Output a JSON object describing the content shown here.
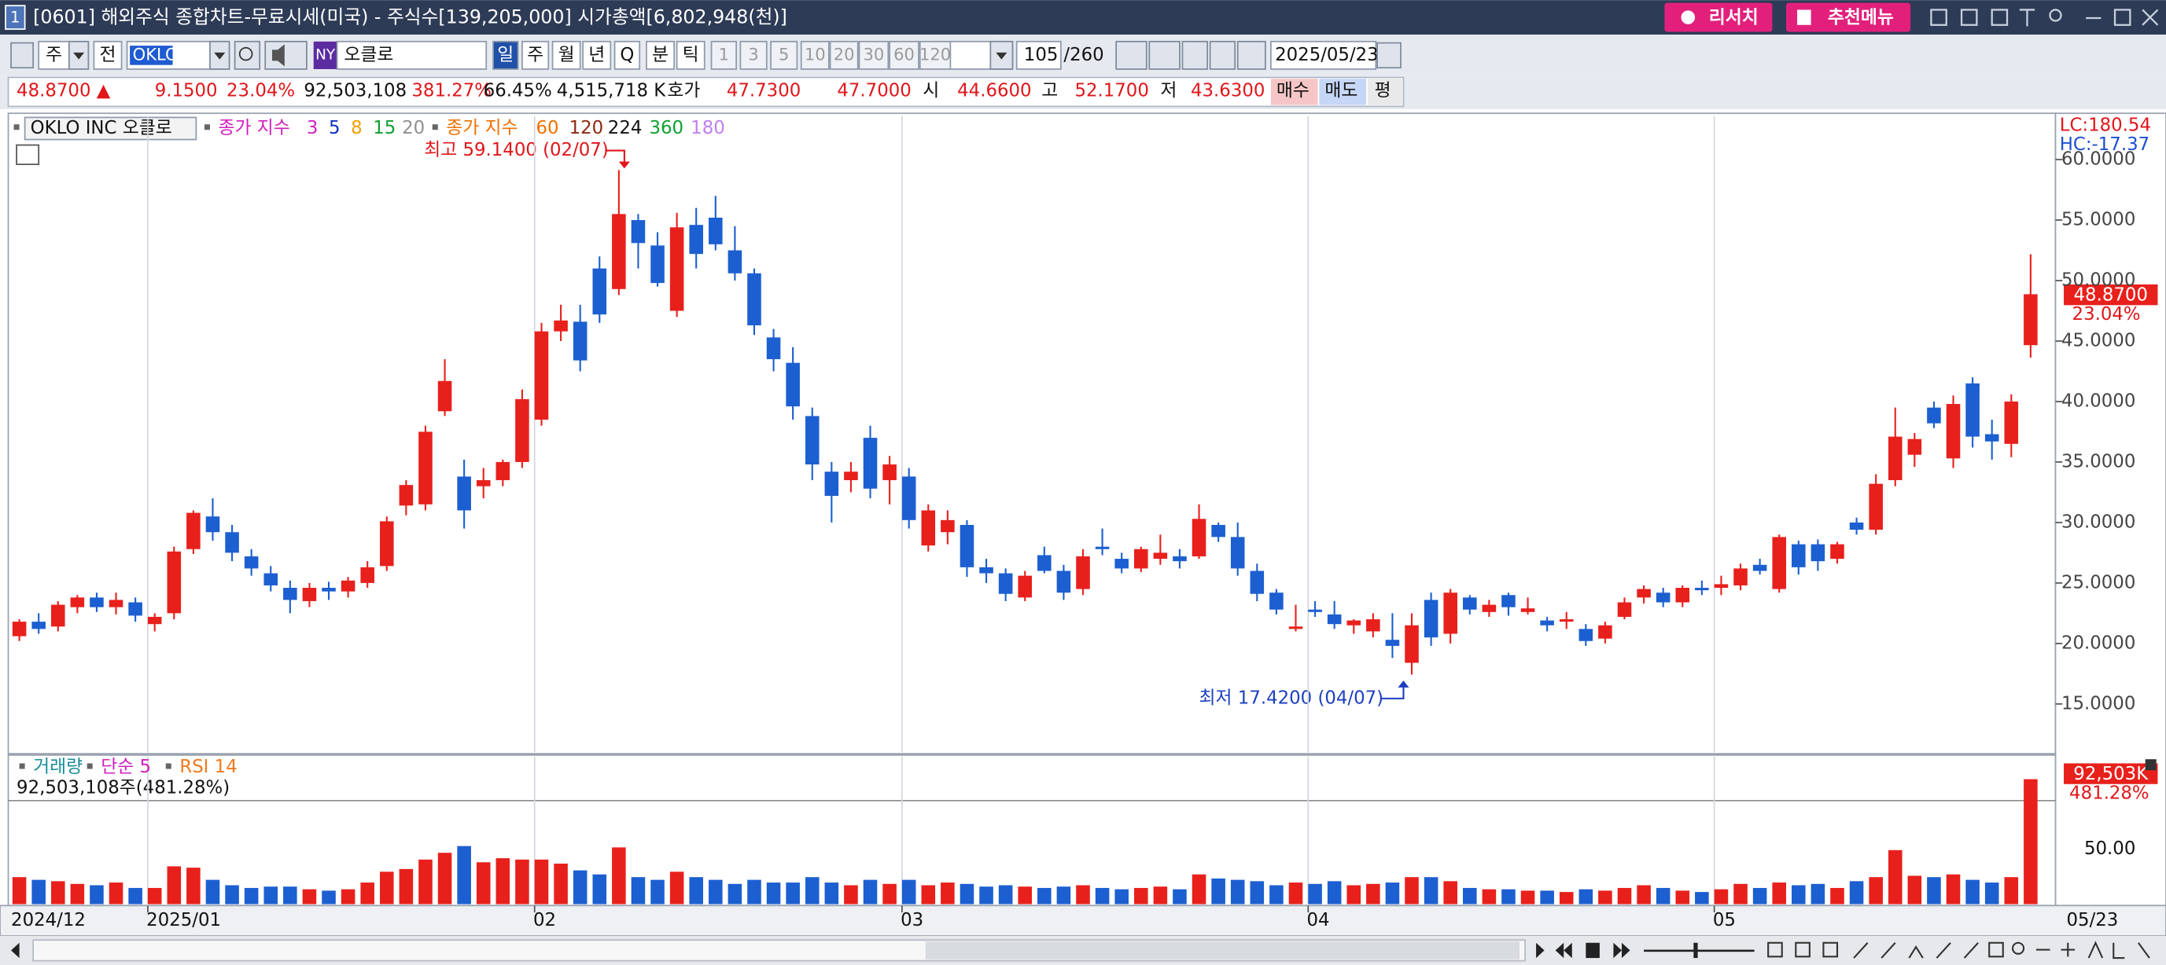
{
  "header": {
    "window_number": "1",
    "title": "[0601] 해외주식 종합차트-무료시세(미국) - 주식수[139,205,000] 시가총액[6,802,948(천)]",
    "buttons": [
      "리서치",
      "추천메뉴"
    ]
  },
  "toolbar": {
    "market": "주",
    "scope": "전",
    "symbol": "OKLO",
    "exchange": "NY",
    "name": "오클로",
    "periods": [
      "일",
      "주",
      "월",
      "년",
      "Q",
      "분",
      "틱",
      "1",
      "3",
      "5",
      "10",
      "20",
      "30",
      "60",
      "120"
    ],
    "count": "105",
    "max_count": "/260",
    "date": "2025/05/23"
  },
  "quote": [
    {
      "text": "48.8700 ▲",
      "color": "#e0161b"
    },
    {
      "text": "9.1500",
      "color": "#e0161b"
    },
    {
      "text": "23.04%",
      "color": "#e0161b"
    },
    {
      "text": "92,503,108",
      "color": "#111111"
    },
    {
      "text": "381.27%",
      "color": "#e0161b"
    },
    {
      "text": "66.45%",
      "color": "#111111"
    },
    {
      "text": "4,515,718 K",
      "color": "#111111"
    },
    {
      "text": "호가",
      "color": "#111111"
    },
    {
      "text": "47.7300",
      "color": "#e0161b"
    },
    {
      "text": "47.7000",
      "color": "#e0161b"
    },
    {
      "text": "시",
      "color": "#111111"
    },
    {
      "text": "44.6600",
      "color": "#e0161b"
    },
    {
      "text": "고",
      "color": "#111111"
    },
    {
      "text": "52.1700",
      "color": "#e0161b"
    },
    {
      "text": "저",
      "color": "#111111"
    },
    {
      "text": "43.6300",
      "color": "#e0161b"
    },
    {
      "text": "매수",
      "color": "#111111"
    },
    {
      "text": "매도",
      "color": "#111111"
    },
    {
      "text": "평",
      "color": "#111111"
    }
  ],
  "chart_data": {
    "type": "candlestick",
    "legend": {
      "symbol": "OKLO INC  오클로",
      "groups": [
        {
          "label": "종가 지수",
          "color": "#d020c0",
          "items": [
            {
              "text": "3",
              "color": "#d020c0"
            },
            {
              "text": "5",
              "color": "#1030c0"
            },
            {
              "text": "8",
              "color": "#f0a000"
            },
            {
              "text": "15",
              "color": "#10a030"
            },
            {
              "text": "20",
              "color": "#909090"
            }
          ]
        },
        {
          "label": "종가 지수",
          "color": "#f07000",
          "items": [
            {
              "text": "60",
              "color": "#f07000"
            },
            {
              "text": "120",
              "color": "#8b2a10"
            },
            {
              "text": "224",
              "color": "#111111"
            },
            {
              "text": "360",
              "color": "#10a030"
            },
            {
              "text": "180",
              "color": "#c080f0"
            }
          ]
        }
      ]
    },
    "categories": [
      "2024/12",
      null,
      null,
      null,
      null,
      null,
      null,
      "2025/01",
      null,
      null,
      null,
      null,
      null,
      null,
      null,
      null,
      null,
      null,
      null,
      null,
      null,
      null,
      null,
      null,
      null,
      null,
      null,
      "02",
      null,
      null,
      null,
      null,
      null,
      null,
      null,
      null,
      null,
      null,
      null,
      null,
      null,
      null,
      null,
      null,
      null,
      null,
      "03",
      null,
      null,
      null,
      null,
      null,
      null,
      null,
      null,
      null,
      null,
      null,
      null,
      null,
      null,
      null,
      null,
      null,
      null,
      null,
      null,
      "04",
      null,
      null,
      null,
      null,
      null,
      null,
      null,
      null,
      null,
      null,
      null,
      null,
      null,
      null,
      null,
      null,
      null,
      null,
      null,
      null,
      "05",
      null,
      null,
      null,
      null,
      null,
      null,
      null,
      null,
      null,
      null,
      null,
      null,
      null,
      null,
      null,
      "05/23"
    ],
    "open": [
      20.6,
      21.8,
      21.4,
      23,
      23.8,
      23,
      23.4,
      21.6,
      22.5,
      27.8,
      30.5,
      29.2,
      27.2,
      25.8,
      24.6,
      23.5,
      24.6,
      24.3,
      25,
      26.4,
      31.4,
      31.5,
      39.2,
      33.8,
      33,
      33.5,
      35,
      38.5,
      45.8,
      46.6,
      51,
      49.3,
      55,
      52.9,
      47.5,
      54.6,
      55.2,
      52.5,
      50.6,
      45.3,
      43.2,
      38.8,
      34.2,
      33.5,
      37,
      33.5,
      33.8,
      28.1,
      29.2,
      29.8,
      26.3,
      25.8,
      23.8,
      27.3,
      26,
      24.5,
      28,
      27,
      26.2,
      27,
      27.2,
      27.2,
      29.8,
      28.8,
      26,
      24.2,
      21.2,
      22.8,
      22.4,
      21.5,
      21,
      20.3,
      18.4,
      23.6,
      20.8,
      23.8,
      22.6,
      24,
      22.6,
      21.9,
      21.8,
      21.2,
      20.4,
      22.2,
      23.8,
      24.2,
      23.4,
      24.6,
      24.6,
      24.8,
      26.5,
      24.5,
      28.2,
      28.2,
      27,
      30,
      29.4,
      33.5,
      35.6,
      39.5,
      35.3,
      41.5,
      37.3,
      36.5,
      44.66
    ],
    "high": [
      22,
      22.5,
      23.5,
      24,
      24.2,
      24.2,
      23.8,
      22.5,
      28,
      31,
      32,
      29.8,
      27.8,
      26.4,
      25.2,
      25,
      25.1,
      25.5,
      26.8,
      30.5,
      33.5,
      38,
      43.5,
      35.2,
      34.5,
      35.2,
      41,
      46.5,
      48,
      48,
      52,
      59.14,
      55.5,
      54,
      55.6,
      56,
      57,
      54.5,
      51,
      46,
      44.5,
      39.5,
      35,
      35,
      38,
      35.5,
      34.5,
      31.5,
      31,
      30.2,
      27,
      26.2,
      26,
      28,
      26.5,
      27.8,
      29.5,
      27.5,
      28,
      29,
      27.8,
      31.5,
      30,
      30,
      26.6,
      24.5,
      23.2,
      23.5,
      23.5,
      22,
      22.5,
      22.5,
      22.5,
      24.2,
      24.5,
      24,
      23.6,
      24.2,
      23.8,
      22.2,
      22.6,
      21.6,
      21.8,
      23.8,
      24.8,
      24.6,
      24.8,
      25.2,
      25.6,
      26.6,
      27,
      29,
      28.5,
      28.6,
      28.4,
      30.4,
      34,
      39.5,
      37.4,
      40,
      40.5,
      42,
      38.5,
      40.6,
      52.17
    ],
    "low": [
      20.2,
      20.8,
      21,
      22.5,
      22.6,
      22.4,
      21.8,
      21,
      22,
      27.4,
      28.5,
      26.8,
      25.6,
      24.3,
      22.5,
      23,
      23.6,
      23.8,
      24.6,
      26,
      30.6,
      31,
      38.8,
      29.5,
      32,
      33,
      34.5,
      38,
      45,
      42.5,
      46.5,
      48.8,
      51,
      49.5,
      47,
      51,
      52.5,
      50,
      45.5,
      42.5,
      38.5,
      33.5,
      30,
      32.5,
      32,
      31.5,
      29.5,
      27.6,
      28.2,
      25.5,
      25,
      23.5,
      23.5,
      25.8,
      23.6,
      24,
      27.3,
      25.8,
      25.9,
      26.5,
      26.2,
      27,
      28.4,
      25.6,
      23.5,
      22.4,
      21,
      22.2,
      21.2,
      20.8,
      20.5,
      18.8,
      17.42,
      19.8,
      20,
      22.4,
      22.2,
      22.3,
      22.4,
      21,
      21.2,
      19.8,
      20,
      22,
      23.3,
      23,
      23,
      24,
      24,
      24.4,
      25.7,
      24.2,
      25.7,
      26,
      26.6,
      29,
      29,
      33,
      34.6,
      37.8,
      34.5,
      36.2,
      35.2,
      35.4,
      43.63
    ],
    "close": [
      21.8,
      21.2,
      23.2,
      23.8,
      23,
      23.6,
      22.3,
      22.2,
      27.6,
      30.8,
      29.2,
      27.5,
      26.2,
      24.8,
      23.6,
      24.6,
      24.3,
      25.2,
      26.3,
      30.1,
      33.1,
      37.5,
      41.7,
      31,
      33.5,
      35,
      40.2,
      45.8,
      46.7,
      43.4,
      47.2,
      55.5,
      53.1,
      49.8,
      54.4,
      52.2,
      53,
      50.6,
      46.3,
      43.5,
      39.6,
      34.8,
      32.2,
      34.2,
      32.8,
      34.8,
      30.2,
      31,
      30.2,
      26.3,
      25.8,
      24.1,
      25.6,
      26,
      24.2,
      27.2,
      27.8,
      26.2,
      27.8,
      27.5,
      26.8,
      30.3,
      28.8,
      26.2,
      24.1,
      22.8,
      21.4,
      22.6,
      21.6,
      21.9,
      22,
      19.8,
      21.5,
      20.5,
      24.2,
      22.8,
      23.2,
      23,
      22.9,
      21.5,
      22,
      20.2,
      21.5,
      23.4,
      24.5,
      23.4,
      24.6,
      24.4,
      24.9,
      26.2,
      26,
      28.8,
      26.3,
      26.8,
      28.2,
      29.4,
      33.2,
      37.1,
      36.9,
      38.2,
      39.8,
      37.1,
      36.7,
      40,
      48.87
    ],
    "volume": [
      20000000,
      18000000,
      17000000,
      15000000,
      14000000,
      16000000,
      12000000,
      12000000,
      28000000,
      27000000,
      18000000,
      14000000,
      12000000,
      13000000,
      13000000,
      11000000,
      10000000,
      11000000,
      16000000,
      24000000,
      26000000,
      33000000,
      38000000,
      43000000,
      31000000,
      34000000,
      33000000,
      33000000,
      30000000,
      25000000,
      22000000,
      42000000,
      20000000,
      18000000,
      24000000,
      20000000,
      18000000,
      15000000,
      18000000,
      16000000,
      16000000,
      20000000,
      16000000,
      14000000,
      18000000,
      15000000,
      18000000,
      14000000,
      16000000,
      15000000,
      13000000,
      14000000,
      13000000,
      12000000,
      13000000,
      14000000,
      12000000,
      11000000,
      12000000,
      13000000,
      11000000,
      22000000,
      19000000,
      18000000,
      17000000,
      14000000,
      16000000,
      15000000,
      17000000,
      14000000,
      15000000,
      16000000,
      20000000,
      20000000,
      17000000,
      12000000,
      11000000,
      11000000,
      10000000,
      10000000,
      9000000,
      11000000,
      10000000,
      12000000,
      14000000,
      12000000,
      10000000,
      9000000,
      11000000,
      15000000,
      12000000,
      16000000,
      14000000,
      15000000,
      12000000,
      17000000,
      20000000,
      40000000,
      21000000,
      20000000,
      22000000,
      18000000,
      16000000,
      20000000,
      92503108
    ],
    "up_color": "#e8201c",
    "down_color": "#1c5fd0",
    "ylim": [
      11,
      63.6
    ],
    "yticks": [
      {
        "value": 15,
        "label": "15.0000"
      },
      {
        "value": 20,
        "label": "20.0000"
      },
      {
        "value": 25,
        "label": "25.0000"
      },
      {
        "value": 30,
        "label": "30.0000"
      },
      {
        "value": 35,
        "label": "35.0000"
      },
      {
        "value": 40,
        "label": "40.0000"
      },
      {
        "value": 45,
        "label": "45.0000"
      },
      {
        "value": 50,
        "label": "50.0000"
      },
      {
        "value": 55,
        "label": "55.0000"
      },
      {
        "value": 60,
        "label": "60.0000"
      }
    ],
    "volume_ylim": [
      0,
      95000000
    ],
    "axis_info": [
      {
        "text": "LC:180.54",
        "color": "#e0161b"
      },
      {
        "text": "HC:-17.37",
        "color": "#1c4fd0"
      }
    ],
    "last_price_label": "48.8700",
    "last_change_label": "23.04%",
    "high_annotation": "최고 59.1400 (02/07)",
    "low_annotation": "최저 17.4200 (04/07)",
    "volume_legend": [
      {
        "text": "거래량",
        "color": "#178e9a"
      },
      {
        "text": "단순 5",
        "color": "#d020c0"
      },
      {
        "text": "RSI 14",
        "color": "#f07a20"
      }
    ],
    "volume_info": "92,503,108주(481.28%)",
    "volume_last_label": "92,503K",
    "rsi_last_label": "481.28%",
    "rsi_tick": "50.00"
  }
}
